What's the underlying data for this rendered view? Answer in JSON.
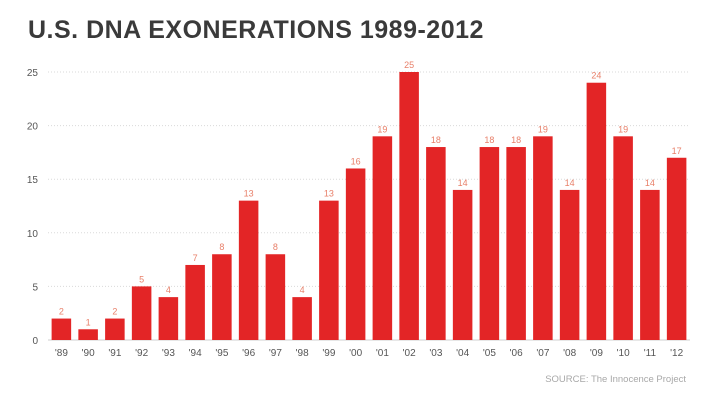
{
  "chart_data": {
    "type": "bar",
    "title": "U.S. DNA EXONERATIONS 1989-2012",
    "xlabel": "",
    "ylabel": "",
    "categories": [
      "'89",
      "'90",
      "'91",
      "'92",
      "'93",
      "'94",
      "'95",
      "'96",
      "'97",
      "'98",
      "'99",
      "'00",
      "'01",
      "'02",
      "'03",
      "'04",
      "'05",
      "'06",
      "'07",
      "'08",
      "'09",
      "'10",
      "'11",
      "'12"
    ],
    "values": [
      2,
      1,
      2,
      5,
      4,
      7,
      8,
      13,
      8,
      4,
      13,
      16,
      19,
      25,
      18,
      14,
      18,
      18,
      19,
      14,
      24,
      19,
      14,
      17
    ],
    "ylim": [
      0,
      25
    ],
    "yticks": [
      0,
      5,
      10,
      15,
      20,
      25
    ],
    "grid": true,
    "bar_color": "#e32526",
    "label_color": "#e8806a",
    "source": "SOURCE: The Innocence Project"
  }
}
